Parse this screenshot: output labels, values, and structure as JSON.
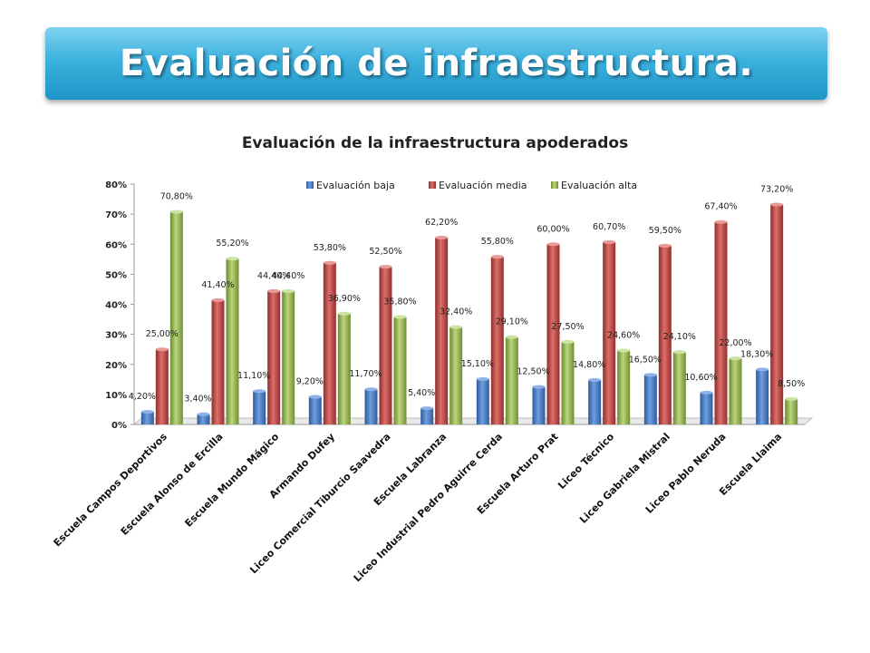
{
  "header": {
    "title": "Evaluación de infraestructura."
  },
  "colors": {
    "low": "#4a7cc4",
    "mid": "#c0504d",
    "high": "#9bbb59",
    "banner": "#2ea6d8"
  },
  "chart_data": {
    "type": "bar",
    "title": "Evaluación de la infraestructura apoderados",
    "legend_position": "top",
    "ylim": [
      0,
      80
    ],
    "yticks": [
      "0%",
      "10%",
      "20%",
      "30%",
      "40%",
      "50%",
      "60%",
      "70%",
      "80%"
    ],
    "categories": [
      "Escuela Campos Deportivos",
      "Escuela Alonso de Ercilla",
      "Escuela Mundo Mágico",
      "Armando Dufey",
      "Liceo Comercial Tiburcio Saavedra",
      "Escuela Labranza",
      "Liceo Industrial Pedro Aguirre Cerda",
      "Escuela Arturo Prat",
      "Liceo Técnico",
      "Liceo Gabriela Mistral",
      "Liceo Pablo Neruda",
      "Escuela Llaima"
    ],
    "series": [
      {
        "name": "Evaluación baja",
        "values": [
          4.2,
          3.4,
          11.1,
          9.2,
          11.7,
          5.4,
          15.1,
          12.5,
          14.8,
          16.5,
          10.6,
          18.3
        ],
        "labels": [
          "4,20%",
          "3,40%",
          "11,10%",
          "9,20%",
          "11,70%",
          "5,40%",
          "15,10%",
          "12,50%",
          "14,80%",
          "16,50%",
          "10,60%",
          "18,30%"
        ]
      },
      {
        "name": "Evaluación media",
        "values": [
          25.0,
          41.4,
          44.4,
          53.8,
          52.5,
          62.2,
          55.8,
          60.0,
          60.7,
          59.5,
          67.4,
          73.2
        ],
        "labels": [
          "25,00%",
          "41,40%",
          "44,40%",
          "53,80%",
          "52,50%",
          "62,20%",
          "55,80%",
          "60,00%",
          "60,70%",
          "59,50%",
          "67,40%",
          "73,20%"
        ]
      },
      {
        "name": "Evaluación alta",
        "values": [
          70.8,
          55.2,
          44.4,
          36.9,
          35.8,
          32.4,
          29.1,
          27.5,
          24.6,
          24.1,
          22.0,
          8.5
        ],
        "labels": [
          "70,80%",
          "55,20%",
          "44,40%",
          "36,90%",
          "35,80%",
          "32,40%",
          "29,10%",
          "27,50%",
          "24,60%",
          "24,10%",
          "22,00%",
          "8,50%"
        ]
      }
    ]
  }
}
